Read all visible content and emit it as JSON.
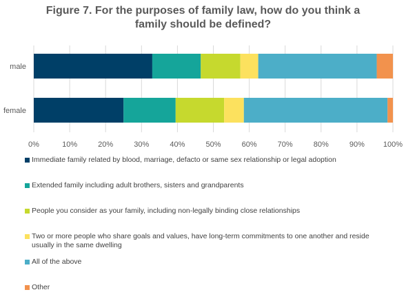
{
  "title_lines": [
    "Figure 7. For the purposes of family law, how do you think a",
    "family should be defined?"
  ],
  "colors": {
    "immediate": "#003F67",
    "extended": "#15A59A",
    "people": "#C6D92E",
    "two_or_more": "#FCE15E",
    "all": "#4CAEC8",
    "other": "#F2924D"
  },
  "chart_data": {
    "type": "bar",
    "orientation": "horizontal",
    "stacked": true,
    "categories": [
      "male",
      "female"
    ],
    "xlim": [
      0,
      100
    ],
    "x_tick_labels": [
      "0%",
      "10%",
      "20%",
      "30%",
      "40%",
      "50%",
      "60%",
      "70%",
      "80%",
      "90%",
      "100%"
    ],
    "grid": true,
    "legend_position": "bottom",
    "series": [
      {
        "name": "Immediate family related by blood, marriage, defacto or same sex relationship or legal adoption",
        "values": [
          33,
          25
        ],
        "color": "#003F67"
      },
      {
        "name": "Extended family including adult brothers, sisters and grandparents",
        "values": [
          13.5,
          14.5
        ],
        "color": "#15A59A"
      },
      {
        "name": "People you consider as your family, including non-legally binding close relationships",
        "values": [
          11,
          13.5
        ],
        "color": "#C6D92E"
      },
      {
        "name": "Two or more people who share goals and values, have long-term commitments to one another and reside usually in the same dwelling",
        "values": [
          5,
          5.5
        ],
        "color": "#FCE15E"
      },
      {
        "name": "All of the above",
        "values": [
          33,
          40
        ],
        "color": "#4CAEC8"
      },
      {
        "name": "Other",
        "values": [
          4.5,
          1.5
        ],
        "color": "#F2924D"
      }
    ]
  }
}
